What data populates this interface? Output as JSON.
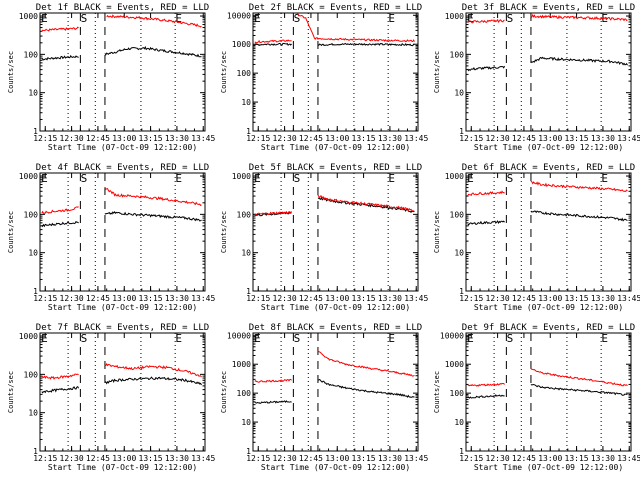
{
  "figure": {
    "ylabel": "Counts/sec",
    "xlabel": "Start Time (07-Oct-09 12:12:00)",
    "x_tick_labels": [
      "12:15",
      "12:30",
      "12:45",
      "13:00",
      "13:15",
      "13:30",
      "13:45"
    ],
    "y_tick_labels": [
      "1",
      "10",
      "100",
      "1000"
    ],
    "y_tick_labels_wide": [
      "1",
      "10",
      "100",
      "1000",
      "10000"
    ],
    "markers": {
      "E": "E",
      "S": "S"
    },
    "colors": {
      "events": "#000000",
      "lld": "#ff0000",
      "axis": "#000000"
    }
  },
  "chart_data": [
    {
      "type": "line",
      "title": "Det 1f BLACK = Events, RED = LLD",
      "ylim": [
        1,
        1200
      ],
      "yscale": "log",
      "xlim_minutes": [
        12.0,
        106.0
      ],
      "markers_minutes": {
        "E1": 14.5,
        "S": 37.0,
        "E2": 91.0
      },
      "dotted_lines_minutes": [
        28.0,
        43.5,
        69.5,
        89.0
      ],
      "dashed_lines_minutes": [
        35.0,
        49.0
      ],
      "series": [
        {
          "name": "Events",
          "before": [
            [
              13,
              75
            ],
            [
              20,
              80
            ],
            [
              28,
              85
            ],
            [
              34,
              88
            ]
          ],
          "after": [
            [
              49,
              100
            ],
            [
              55,
              115
            ],
            [
              62,
              140
            ],
            [
              72,
              145
            ],
            [
              82,
              125
            ],
            [
              92,
              110
            ],
            [
              104,
              90
            ]
          ]
        },
        {
          "name": "LLD",
          "before": [
            [
              13,
              420
            ],
            [
              20,
              440
            ],
            [
              28,
              460
            ],
            [
              34,
              480
            ]
          ],
          "after": [
            [
              50,
              1000
            ],
            [
              60,
              950
            ],
            [
              70,
              900
            ],
            [
              80,
              800
            ],
            [
              90,
              700
            ],
            [
              104,
              550
            ]
          ]
        }
      ]
    },
    {
      "type": "line",
      "title": "Det 2f BLACK = Events, RED = LLD",
      "ylim": [
        1,
        12000
      ],
      "yscale": "log",
      "xlim_minutes": [
        12.0,
        106.0
      ],
      "markers_minutes": {
        "E1": 14.5,
        "S": 37.0,
        "E2": 91.0
      },
      "dotted_lines_minutes": [
        28.0,
        43.5,
        69.5,
        89.0
      ],
      "dashed_lines_minutes": [
        35.0,
        49.0
      ],
      "series": [
        {
          "name": "Events",
          "before": [
            [
              13,
              950
            ],
            [
              20,
              1000
            ],
            [
              28,
              1000
            ],
            [
              34,
              1000
            ]
          ],
          "after": [
            [
              49,
              950
            ],
            [
              60,
              1000
            ],
            [
              80,
              1000
            ],
            [
              104,
              950
            ]
          ]
        },
        {
          "name": "LLD",
          "before": [
            [
              13,
              1200
            ],
            [
              20,
              1250
            ],
            [
              28,
              1300
            ],
            [
              34,
              1350
            ]
          ],
          "after": [
            [
              37,
              11000
            ],
            [
              42,
              8000
            ],
            [
              47,
              1600
            ],
            [
              60,
              1500
            ],
            [
              80,
              1400
            ],
            [
              104,
              1300
            ]
          ]
        }
      ]
    },
    {
      "type": "line",
      "title": "Det 3f BLACK = Events, RED = LLD",
      "ylim": [
        1,
        1200
      ],
      "yscale": "log",
      "xlim_minutes": [
        12.0,
        106.0
      ],
      "markers_minutes": {
        "E1": 14.5,
        "S": 37.0,
        "E2": 91.0
      },
      "dotted_lines_minutes": [
        28.0,
        43.5,
        69.5,
        89.0
      ],
      "dashed_lines_minutes": [
        35.0,
        49.0
      ],
      "series": [
        {
          "name": "Events",
          "before": [
            [
              13,
              40
            ],
            [
              20,
              43
            ],
            [
              28,
              45
            ],
            [
              34,
              47
            ]
          ],
          "after": [
            [
              49,
              60
            ],
            [
              55,
              80
            ],
            [
              65,
              75
            ],
            [
              80,
              70
            ],
            [
              95,
              65
            ],
            [
              104,
              55
            ]
          ]
        },
        {
          "name": "LLD",
          "before": [
            [
              13,
              700
            ],
            [
              20,
              720
            ],
            [
              28,
              740
            ],
            [
              34,
              760
            ]
          ],
          "after": [
            [
              49,
              1000
            ],
            [
              60,
              950
            ],
            [
              80,
              900
            ],
            [
              95,
              850
            ],
            [
              104,
              800
            ]
          ]
        }
      ]
    },
    {
      "type": "line",
      "title": "Det 4f BLACK = Events, RED = LLD",
      "ylim": [
        1,
        1200
      ],
      "yscale": "log",
      "xlim_minutes": [
        12.0,
        106.0
      ],
      "markers_minutes": {
        "E1": 14.5,
        "S": 37.0,
        "E2": 91.0
      },
      "dotted_lines_minutes": [
        28.0,
        43.5,
        69.5,
        89.0
      ],
      "dashed_lines_minutes": [
        35.0,
        49.0
      ],
      "series": [
        {
          "name": "Events",
          "before": [
            [
              13,
              50
            ],
            [
              20,
              55
            ],
            [
              28,
              60
            ],
            [
              34,
              62
            ]
          ],
          "after": [
            [
              49,
              100
            ],
            [
              55,
              110
            ],
            [
              65,
              100
            ],
            [
              80,
              90
            ],
            [
              95,
              80
            ],
            [
              104,
              70
            ]
          ]
        },
        {
          "name": "LLD",
          "before": [
            [
              13,
              110
            ],
            [
              20,
              120
            ],
            [
              28,
              130
            ],
            [
              34,
              150
            ]
          ],
          "after": [
            [
              49,
              500
            ],
            [
              55,
              320
            ],
            [
              65,
              300
            ],
            [
              80,
              260
            ],
            [
              95,
              210
            ],
            [
              104,
              180
            ]
          ]
        }
      ]
    },
    {
      "type": "line",
      "title": "Det 5f BLACK = Events, RED = LLD",
      "ylim": [
        1,
        1200
      ],
      "yscale": "log",
      "xlim_minutes": [
        12.0,
        106.0
      ],
      "markers_minutes": {
        "E1": 14.5,
        "S": 37.0,
        "E2": 91.0
      },
      "dotted_lines_minutes": [
        28.0,
        43.5,
        69.5,
        89.0
      ],
      "dashed_lines_minutes": [
        35.0,
        49.0
      ],
      "series": [
        {
          "name": "Events",
          "before": [
            [
              13,
              95
            ],
            [
              20,
              100
            ],
            [
              28,
              105
            ],
            [
              34,
              110
            ]
          ],
          "after": [
            [
              49,
              270
            ],
            [
              55,
              230
            ],
            [
              65,
              200
            ],
            [
              80,
              170
            ],
            [
              95,
              140
            ],
            [
              104,
              115
            ]
          ]
        },
        {
          "name": "LLD",
          "before": [
            [
              13,
              100
            ],
            [
              20,
              105
            ],
            [
              28,
              110
            ],
            [
              34,
              115
            ]
          ],
          "after": [
            [
              49,
              300
            ],
            [
              55,
              250
            ],
            [
              65,
              210
            ],
            [
              80,
              180
            ],
            [
              95,
              150
            ],
            [
              104,
              125
            ]
          ]
        }
      ]
    },
    {
      "type": "line",
      "title": "Det 6f BLACK = Events, RED = LLD",
      "ylim": [
        1,
        1200
      ],
      "yscale": "log",
      "xlim_minutes": [
        12.0,
        106.0
      ],
      "markers_minutes": {
        "E1": 14.5,
        "S": 37.0,
        "E2": 91.0
      },
      "dotted_lines_minutes": [
        28.0,
        43.5,
        69.5,
        89.0
      ],
      "dashed_lines_minutes": [
        35.0,
        49.0
      ],
      "series": [
        {
          "name": "Events",
          "before": [
            [
              13,
              55
            ],
            [
              20,
              60
            ],
            [
              28,
              62
            ],
            [
              34,
              65
            ]
          ],
          "after": [
            [
              49,
              120
            ],
            [
              55,
              110
            ],
            [
              65,
              100
            ],
            [
              80,
              90
            ],
            [
              95,
              80
            ],
            [
              104,
              70
            ]
          ]
        },
        {
          "name": "LLD",
          "before": [
            [
              13,
              330
            ],
            [
              20,
              350
            ],
            [
              28,
              360
            ],
            [
              34,
              380
            ]
          ],
          "after": [
            [
              49,
              700
            ],
            [
              55,
              600
            ],
            [
              65,
              550
            ],
            [
              80,
              500
            ],
            [
              95,
              450
            ],
            [
              104,
              400
            ]
          ]
        }
      ]
    },
    {
      "type": "line",
      "title": "Det 7f BLACK = Events, RED = LLD",
      "ylim": [
        1,
        1200
      ],
      "yscale": "log",
      "xlim_minutes": [
        12.0,
        106.0
      ],
      "markers_minutes": {
        "E1": 14.5,
        "S": 37.0,
        "E2": 91.0
      },
      "dotted_lines_minutes": [
        28.0,
        43.5,
        69.5,
        89.0
      ],
      "dashed_lines_minutes": [
        35.0,
        49.0
      ],
      "series": [
        {
          "name": "Events",
          "before": [
            [
              13,
              35
            ],
            [
              20,
              38
            ],
            [
              28,
              42
            ],
            [
              34,
              45
            ]
          ],
          "after": [
            [
              49,
              60
            ],
            [
              55,
              70
            ],
            [
              65,
              75
            ],
            [
              80,
              80
            ],
            [
              95,
              70
            ],
            [
              104,
              55
            ]
          ]
        },
        {
          "name": "LLD",
          "before": [
            [
              13,
              85
            ],
            [
              20,
              80
            ],
            [
              28,
              90
            ],
            [
              34,
              100
            ]
          ],
          "after": [
            [
              49,
              180
            ],
            [
              55,
              160
            ],
            [
              65,
              140
            ],
            [
              75,
              160
            ],
            [
              85,
              150
            ],
            [
              95,
              120
            ],
            [
              104,
              90
            ]
          ]
        }
      ]
    },
    {
      "type": "line",
      "title": "Det 8f BLACK = Events, RED = LLD",
      "ylim": [
        1,
        12000
      ],
      "yscale": "log",
      "xlim_minutes": [
        12.0,
        106.0
      ],
      "markers_minutes": {
        "E1": 14.5,
        "S": 37.0,
        "E2": 91.0
      },
      "dotted_lines_minutes": [
        28.0,
        43.5,
        69.5,
        89.0
      ],
      "dashed_lines_minutes": [
        35.0,
        49.0
      ],
      "series": [
        {
          "name": "Events",
          "before": [
            [
              13,
              45
            ],
            [
              20,
              48
            ],
            [
              28,
              50
            ],
            [
              34,
              52
            ]
          ],
          "after": [
            [
              49,
              300
            ],
            [
              55,
              200
            ],
            [
              65,
              150
            ],
            [
              80,
              110
            ],
            [
              95,
              90
            ],
            [
              104,
              70
            ]
          ]
        },
        {
          "name": "LLD",
          "before": [
            [
              13,
              250
            ],
            [
              20,
              260
            ],
            [
              28,
              270
            ],
            [
              34,
              280
            ]
          ],
          "after": [
            [
              49,
              3000
            ],
            [
              55,
              1500
            ],
            [
              65,
              1000
            ],
            [
              80,
              700
            ],
            [
              95,
              500
            ],
            [
              104,
              400
            ]
          ]
        }
      ]
    },
    {
      "type": "line",
      "title": "Det 9f BLACK = Events, RED = LLD",
      "ylim": [
        1,
        12000
      ],
      "yscale": "log",
      "xlim_minutes": [
        12.0,
        106.0
      ],
      "markers_minutes": {
        "E1": 14.5,
        "S": 37.0,
        "E2": 91.0
      },
      "dotted_lines_minutes": [
        28.0,
        43.5,
        69.5,
        89.0
      ],
      "dashed_lines_minutes": [
        35.0,
        49.0
      ],
      "series": [
        {
          "name": "Events",
          "before": [
            [
              13,
              70
            ],
            [
              20,
              75
            ],
            [
              28,
              80
            ],
            [
              34,
              85
            ]
          ],
          "after": [
            [
              49,
              200
            ],
            [
              55,
              160
            ],
            [
              65,
              140
            ],
            [
              80,
              120
            ],
            [
              95,
              100
            ],
            [
              104,
              85
            ]
          ]
        },
        {
          "name": "LLD",
          "before": [
            [
              13,
              180
            ],
            [
              20,
              190
            ],
            [
              28,
              200
            ],
            [
              34,
              210
            ]
          ],
          "after": [
            [
              49,
              700
            ],
            [
              55,
              500
            ],
            [
              65,
              400
            ],
            [
              80,
              300
            ],
            [
              95,
              220
            ],
            [
              104,
              180
            ]
          ]
        }
      ]
    }
  ]
}
